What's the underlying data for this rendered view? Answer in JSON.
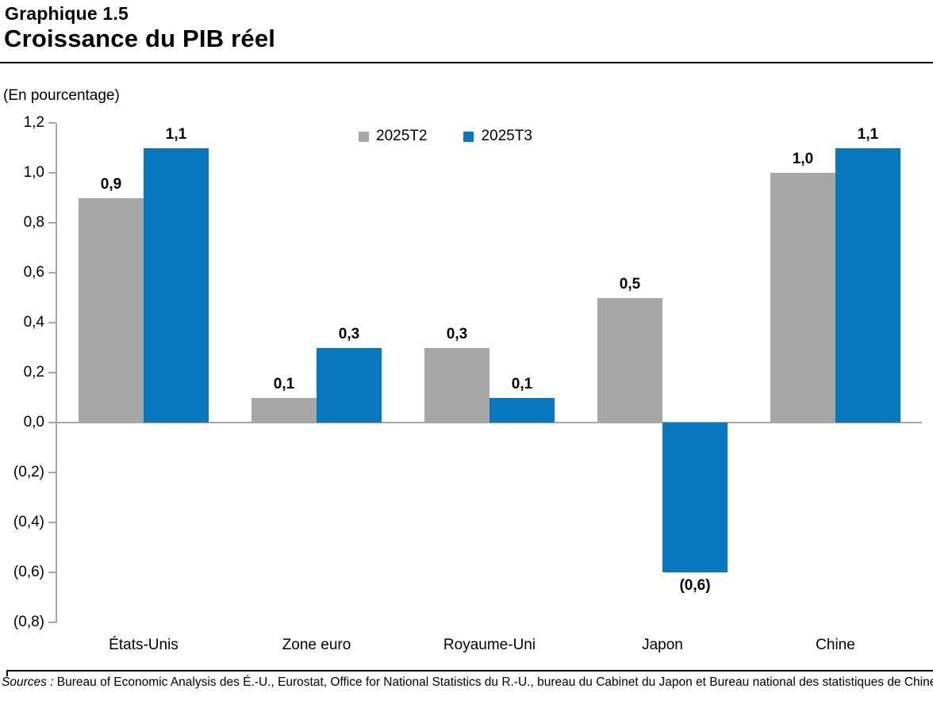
{
  "header": {
    "chart_number": "Graphique 1.5"
  },
  "chart_data": {
    "type": "bar",
    "title": "Croissance du PIB réel",
    "unit_label": "(En pourcentage)",
    "categories": [
      "États-Unis",
      "Zone euro",
      "Royaume-Uni",
      "Japon",
      "Chine"
    ],
    "series": [
      {
        "name": "2025T2",
        "color": "#A6A6A6",
        "values": [
          0.9,
          0.1,
          0.3,
          0.5,
          1.0
        ],
        "labels": [
          "0,9",
          "0,1",
          "0,3",
          "0,5",
          "1,0"
        ]
      },
      {
        "name": "2025T3",
        "color": "#0878BE",
        "values": [
          1.1,
          0.3,
          0.1,
          -0.6,
          1.1
        ],
        "labels": [
          "1,1",
          "0,3",
          "0,1",
          "(0,6)",
          "1,1"
        ]
      }
    ],
    "xlabel": "",
    "ylabel": "(En pourcentage)",
    "ylim": [
      -0.8,
      1.2
    ],
    "y_ticks": [
      {
        "value": 1.2,
        "label": "1,2"
      },
      {
        "value": 1.0,
        "label": "1,0"
      },
      {
        "value": 0.8,
        "label": "0,8"
      },
      {
        "value": 0.6,
        "label": "0,6"
      },
      {
        "value": 0.4,
        "label": "0,4"
      },
      {
        "value": 0.2,
        "label": "0,2"
      },
      {
        "value": 0.0,
        "label": "0,0"
      },
      {
        "value": -0.2,
        "label": "(0,2)"
      },
      {
        "value": -0.4,
        "label": "(0,4)"
      },
      {
        "value": -0.6,
        "label": "(0,6)"
      },
      {
        "value": -0.8,
        "label": "(0,8)"
      }
    ],
    "grid": false,
    "legend_position": "top-center",
    "axis_color": "#A6A6A6",
    "negative_format": "parentheses"
  },
  "source": {
    "prefix": "Sources :",
    "text": " Bureau of Economic Analysis des É.-U., Eurostat, Office for National Statistics du R.-U., bureau du Cabinet du Japon et Bureau national des statistiques de Chine."
  }
}
